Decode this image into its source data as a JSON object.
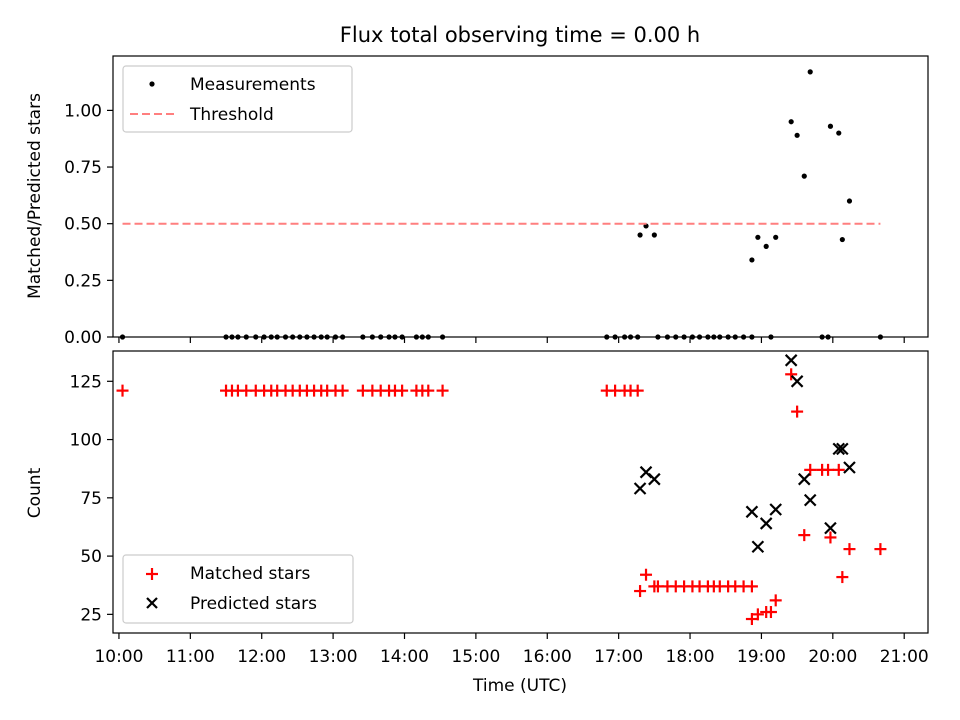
{
  "figure_title": "Flux total observing time = 0.00 h",
  "colors": {
    "measurement": "#000000",
    "threshold": "#ff7f7f",
    "matched": "#ff0000",
    "predicted": "#000000"
  },
  "chart_data": [
    {
      "type": "scatter",
      "title": "Flux total observing time = 0.00 h",
      "xlabel": "",
      "ylabel": "Matched/Predicted stars",
      "xlim": [
        "09:55",
        "21:20"
      ],
      "ylim": [
        0,
        1.24
      ],
      "xticks": [
        "10:00",
        "11:00",
        "12:00",
        "13:00",
        "14:00",
        "15:00",
        "16:00",
        "17:00",
        "18:00",
        "19:00",
        "20:00",
        "21:00"
      ],
      "yticks": [
        "0.00",
        "0.25",
        "0.50",
        "0.75",
        "1.00"
      ],
      "legend": {
        "position": "upper-left",
        "entries": [
          "Measurements",
          "Threshold"
        ]
      },
      "series": [
        {
          "name": "Measurements",
          "marker": "dot",
          "points": [
            [
              "10:03",
              0
            ],
            [
              "11:30",
              0
            ],
            [
              "11:35",
              0
            ],
            [
              "11:40",
              0
            ],
            [
              "11:47",
              0
            ],
            [
              "11:55",
              0
            ],
            [
              "12:02",
              0
            ],
            [
              "12:08",
              0
            ],
            [
              "12:13",
              0
            ],
            [
              "12:20",
              0
            ],
            [
              "12:26",
              0
            ],
            [
              "12:32",
              0
            ],
            [
              "12:38",
              0
            ],
            [
              "12:44",
              0
            ],
            [
              "12:50",
              0
            ],
            [
              "12:55",
              0
            ],
            [
              "13:02",
              0
            ],
            [
              "13:08",
              0
            ],
            [
              "13:25",
              0
            ],
            [
              "13:33",
              0
            ],
            [
              "13:40",
              0
            ],
            [
              "13:47",
              0
            ],
            [
              "13:52",
              0
            ],
            [
              "13:58",
              0
            ],
            [
              "14:10",
              0
            ],
            [
              "14:15",
              0
            ],
            [
              "14:20",
              0
            ],
            [
              "14:32",
              0
            ],
            [
              "16:50",
              0
            ],
            [
              "16:57",
              0
            ],
            [
              "17:05",
              0
            ],
            [
              "17:10",
              0
            ],
            [
              "17:16",
              0
            ],
            [
              "17:33",
              0
            ],
            [
              "17:41",
              0
            ],
            [
              "17:48",
              0
            ],
            [
              "17:55",
              0
            ],
            [
              "18:02",
              0
            ],
            [
              "18:08",
              0
            ],
            [
              "18:15",
              0
            ],
            [
              "18:20",
              0
            ],
            [
              "18:25",
              0
            ],
            [
              "18:32",
              0
            ],
            [
              "18:38",
              0
            ],
            [
              "18:45",
              0
            ],
            [
              "18:52",
              0
            ],
            [
              "19:08",
              0
            ],
            [
              "19:51",
              0
            ],
            [
              "19:56",
              0
            ],
            [
              "20:40",
              0
            ],
            [
              "17:18",
              0.45
            ],
            [
              "17:23",
              0.49
            ],
            [
              "17:30",
              0.45
            ],
            [
              "18:52",
              0.34
            ],
            [
              "18:57",
              0.44
            ],
            [
              "19:04",
              0.4
            ],
            [
              "19:12",
              0.44
            ],
            [
              "19:25",
              0.95
            ],
            [
              "19:30",
              0.89
            ],
            [
              "19:36",
              0.71
            ],
            [
              "19:41",
              1.17
            ],
            [
              "19:58",
              0.93
            ],
            [
              "20:05",
              0.9
            ],
            [
              "20:08",
              0.43
            ],
            [
              "20:14",
              0.6
            ]
          ]
        },
        {
          "name": "Threshold",
          "style": "dashed",
          "points": [
            [
              "10:03",
              0.5
            ],
            [
              "20:40",
              0.5
            ]
          ]
        }
      ]
    },
    {
      "type": "scatter",
      "title": "",
      "xlabel": "Time (UTC)",
      "ylabel": "Count",
      "xlim": [
        "09:55",
        "21:20"
      ],
      "ylim": [
        17,
        138
      ],
      "xticks": [
        "10:00",
        "11:00",
        "12:00",
        "13:00",
        "14:00",
        "15:00",
        "16:00",
        "17:00",
        "18:00",
        "19:00",
        "20:00",
        "21:00"
      ],
      "yticks": [
        "25",
        "50",
        "75",
        "100",
        "125"
      ],
      "legend": {
        "position": "lower-left",
        "entries": [
          "Matched stars",
          "Predicted stars"
        ]
      },
      "series": [
        {
          "name": "Matched stars",
          "marker": "plus",
          "points": [
            [
              "10:03",
              121
            ],
            [
              "11:30",
              121
            ],
            [
              "11:35",
              121
            ],
            [
              "11:40",
              121
            ],
            [
              "11:47",
              121
            ],
            [
              "11:55",
              121
            ],
            [
              "12:02",
              121
            ],
            [
              "12:08",
              121
            ],
            [
              "12:13",
              121
            ],
            [
              "12:20",
              121
            ],
            [
              "12:26",
              121
            ],
            [
              "12:32",
              121
            ],
            [
              "12:38",
              121
            ],
            [
              "12:44",
              121
            ],
            [
              "12:50",
              121
            ],
            [
              "12:55",
              121
            ],
            [
              "13:02",
              121
            ],
            [
              "13:08",
              121
            ],
            [
              "13:25",
              121
            ],
            [
              "13:33",
              121
            ],
            [
              "13:40",
              121
            ],
            [
              "13:47",
              121
            ],
            [
              "13:52",
              121
            ],
            [
              "13:58",
              121
            ],
            [
              "14:10",
              121
            ],
            [
              "14:15",
              121
            ],
            [
              "14:20",
              121
            ],
            [
              "14:32",
              121
            ],
            [
              "16:50",
              121
            ],
            [
              "16:57",
              121
            ],
            [
              "17:05",
              121
            ],
            [
              "17:10",
              121
            ],
            [
              "17:16",
              121
            ],
            [
              "17:18",
              35
            ],
            [
              "17:23",
              42
            ],
            [
              "17:30",
              37
            ],
            [
              "17:33",
              37
            ],
            [
              "17:41",
              37
            ],
            [
              "17:48",
              37
            ],
            [
              "17:55",
              37
            ],
            [
              "18:02",
              37
            ],
            [
              "18:08",
              37
            ],
            [
              "18:15",
              37
            ],
            [
              "18:20",
              37
            ],
            [
              "18:25",
              37
            ],
            [
              "18:32",
              37
            ],
            [
              "18:38",
              37
            ],
            [
              "18:45",
              37
            ],
            [
              "18:52",
              37
            ],
            [
              "18:52",
              23
            ],
            [
              "18:57",
              25
            ],
            [
              "19:04",
              26
            ],
            [
              "19:08",
              26
            ],
            [
              "19:12",
              31
            ],
            [
              "19:25",
              128
            ],
            [
              "19:30",
              112
            ],
            [
              "19:36",
              59
            ],
            [
              "19:41",
              87
            ],
            [
              "19:51",
              87
            ],
            [
              "19:56",
              87
            ],
            [
              "19:58",
              58
            ],
            [
              "20:05",
              87
            ],
            [
              "20:08",
              41
            ],
            [
              "20:14",
              53
            ],
            [
              "20:40",
              53
            ]
          ]
        },
        {
          "name": "Predicted stars",
          "marker": "x",
          "points": [
            [
              "17:18",
              79
            ],
            [
              "17:23",
              86
            ],
            [
              "17:30",
              83
            ],
            [
              "18:52",
              69
            ],
            [
              "18:57",
              54
            ],
            [
              "19:04",
              64
            ],
            [
              "19:12",
              70
            ],
            [
              "19:25",
              134
            ],
            [
              "19:30",
              125
            ],
            [
              "19:36",
              83
            ],
            [
              "19:41",
              74
            ],
            [
              "19:58",
              62
            ],
            [
              "20:05",
              96
            ],
            [
              "20:08",
              96
            ],
            [
              "20:14",
              88
            ]
          ]
        }
      ]
    }
  ]
}
